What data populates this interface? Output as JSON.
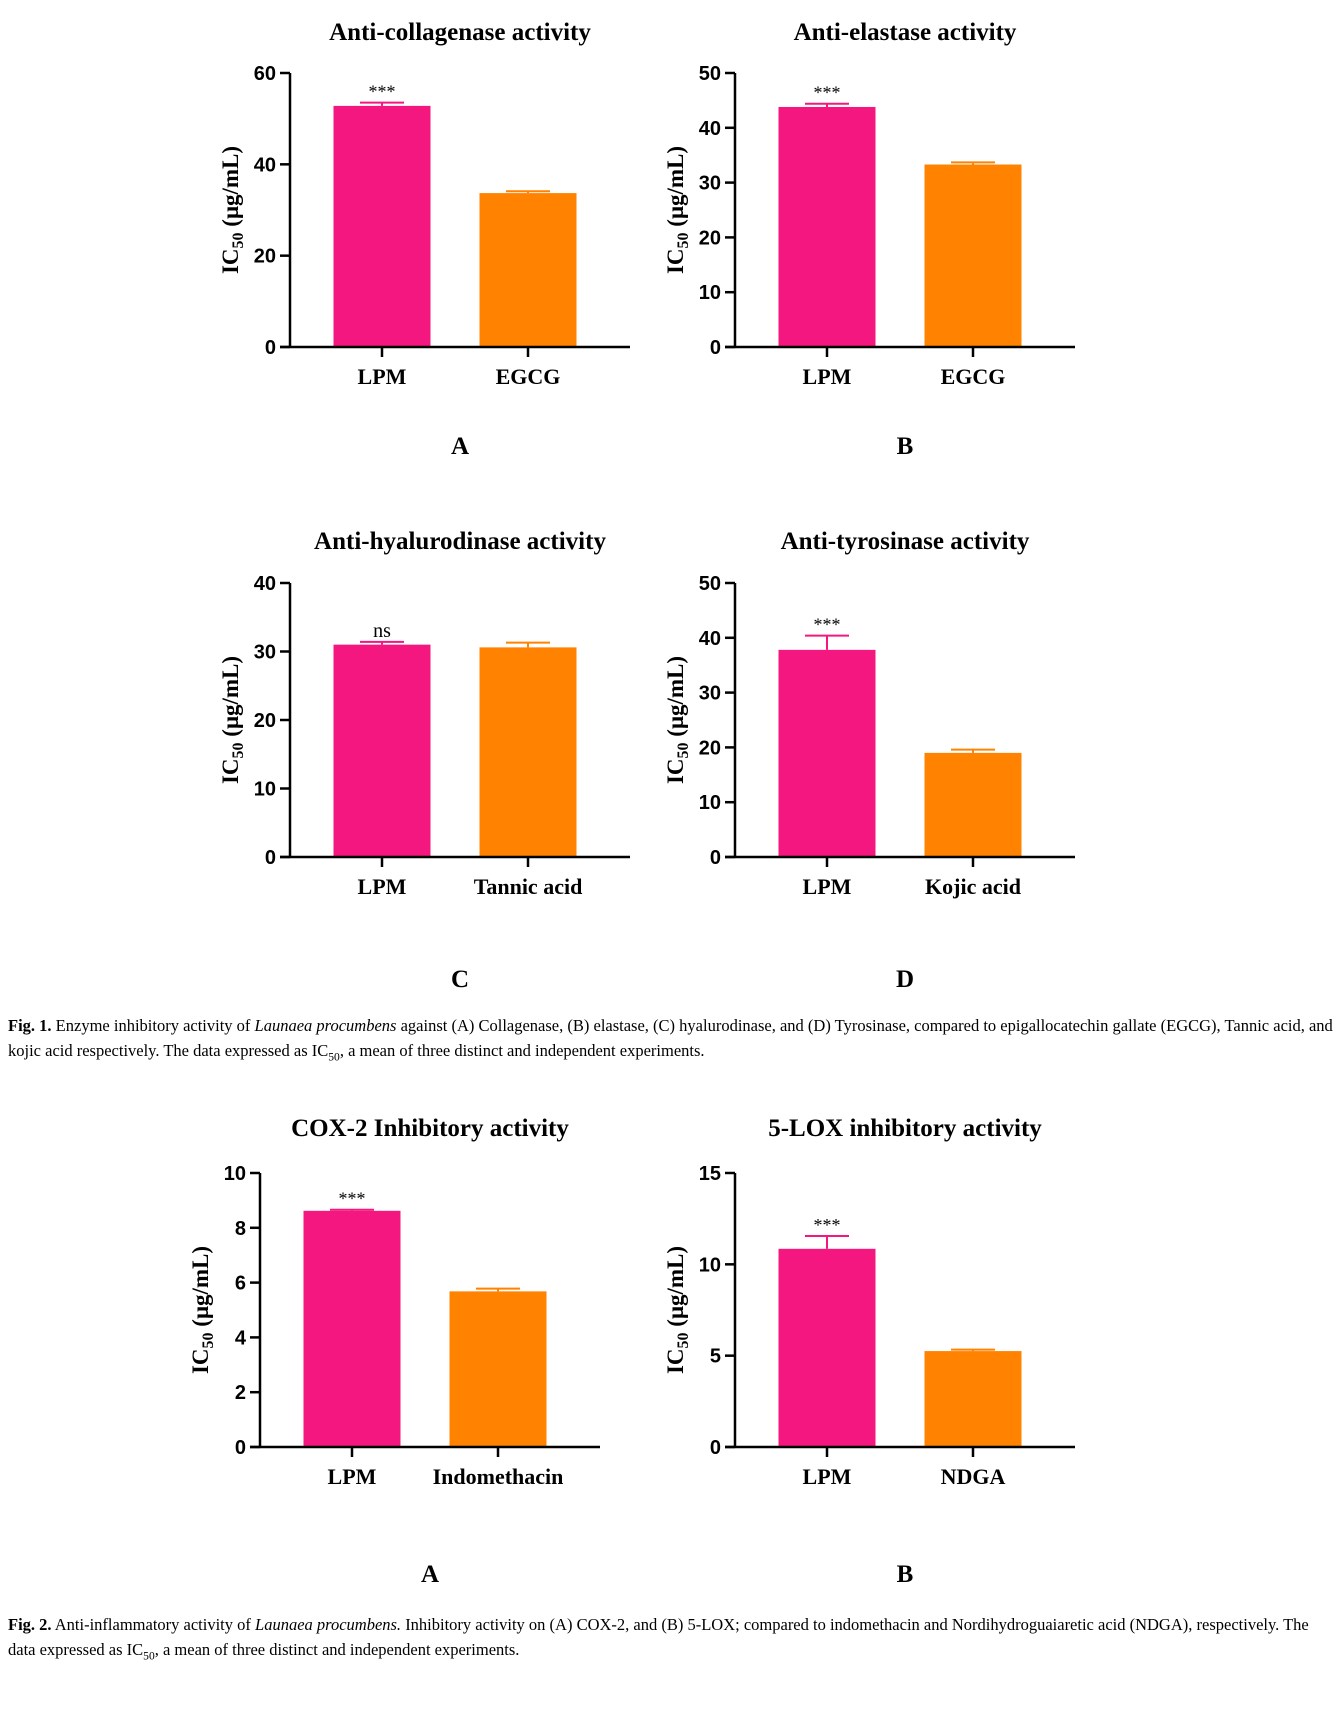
{
  "colors": {
    "lpm": "#F4177F",
    "reference": "#FF8200",
    "axis": "#000000"
  },
  "chart_data": [
    {
      "type": "bar",
      "title": "Anti-collagenase activity",
      "panel_label": "A",
      "ylabel": "IC50 (μg/mL)",
      "categories": [
        "LPM",
        "EGCG"
      ],
      "values": [
        52.8,
        33.7
      ],
      "errors": [
        0.7,
        0.4
      ],
      "significance": [
        "***",
        ""
      ],
      "ylim": [
        0,
        60
      ],
      "yticks": [
        0,
        20,
        40,
        60
      ],
      "grid": false
    },
    {
      "type": "bar",
      "title": "Anti-elastase activity",
      "panel_label": "B",
      "ylabel": "IC50 (μg/mL)",
      "categories": [
        "LPM",
        "EGCG"
      ],
      "values": [
        43.8,
        33.3
      ],
      "errors": [
        0.6,
        0.4
      ],
      "significance": [
        "***",
        ""
      ],
      "ylim": [
        0,
        50
      ],
      "yticks": [
        0,
        10,
        20,
        30,
        40,
        50
      ],
      "grid": false
    },
    {
      "type": "bar",
      "title": "Anti-hyalurodinase activity",
      "panel_label": "C",
      "ylabel": "IC50 (μg/mL)",
      "categories": [
        "LPM",
        "Tannic acid"
      ],
      "values": [
        31.0,
        30.6
      ],
      "errors": [
        0.4,
        0.7
      ],
      "significance": [
        "ns",
        ""
      ],
      "ylim": [
        0,
        40
      ],
      "yticks": [
        0,
        10,
        20,
        30,
        40
      ],
      "grid": false
    },
    {
      "type": "bar",
      "title": "Anti-tyrosinase activity",
      "panel_label": "D",
      "ylabel": "IC50 (μg/mL)",
      "categories": [
        "LPM",
        "Kojic acid"
      ],
      "values": [
        37.8,
        19.0
      ],
      "errors": [
        2.6,
        0.6
      ],
      "significance": [
        "***",
        ""
      ],
      "ylim": [
        0,
        50
      ],
      "yticks": [
        0,
        10,
        20,
        30,
        40,
        50
      ],
      "grid": false
    },
    {
      "type": "bar",
      "title": "COX-2 Inhibitory activity",
      "panel_label": "A",
      "ylabel": "IC50 (μg/mL)",
      "categories": [
        "LPM",
        "Indomethacin"
      ],
      "values": [
        8.62,
        5.68
      ],
      "errors": [
        0.04,
        0.1
      ],
      "significance": [
        "***",
        ""
      ],
      "ylim": [
        0,
        10
      ],
      "yticks": [
        0,
        2,
        4,
        6,
        8,
        10
      ],
      "grid": false
    },
    {
      "type": "bar",
      "title": "5-LOX inhibitory activity",
      "panel_label": "B",
      "ylabel": "IC50 (μg/mL)",
      "categories": [
        "LPM",
        "NDGA"
      ],
      "values": [
        10.85,
        5.25
      ],
      "errors": [
        0.7,
        0.08
      ],
      "significance": [
        "***",
        ""
      ],
      "ylim": [
        0,
        15
      ],
      "yticks": [
        0,
        5,
        10,
        15
      ],
      "grid": false
    }
  ],
  "captions": {
    "fig1": {
      "label": "Fig. 1.",
      "pre": "Enzyme inhibitory activity of",
      "species": "Launaea procumbens",
      "post": "against (A) Collagenase, (B) elastase, (C) hyalurodinase, and (D) Tyrosinase, compared to epigallocatechin gallate (EGCG), Tannic acid, and kojic acid respectively. The data expressed as IC50, a mean of three distinct and independent experiments."
    },
    "fig2": {
      "label": "Fig. 2.",
      "pre": "Anti-inflammatory activity of",
      "species": "Launaea procumbens.",
      "post": "Inhibitory activity on (A) COX-2, and (B) 5-LOX; compared to indomethacin and Nordihydroguaiaretic acid (NDGA), respectively. The data expressed as IC50, a mean of three distinct and independent experiments."
    }
  }
}
